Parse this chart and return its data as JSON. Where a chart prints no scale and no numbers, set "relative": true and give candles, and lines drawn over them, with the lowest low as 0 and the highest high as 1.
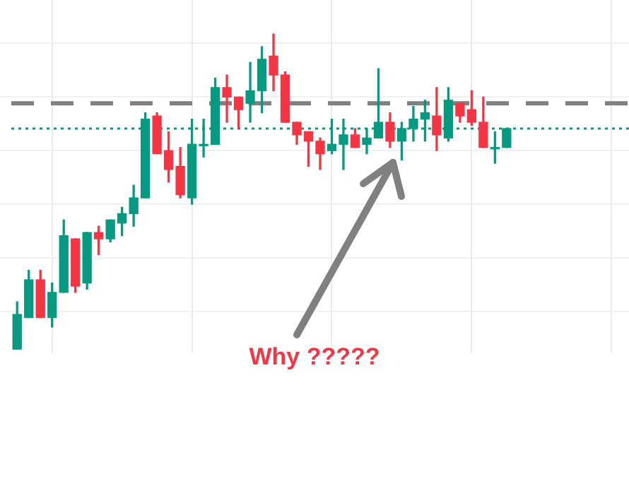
{
  "chart_data": {
    "type": "candlestick",
    "relative": true,
    "grid": true,
    "legend": false,
    "categories": [
      null,
      null,
      null,
      null,
      null,
      null,
      null,
      null,
      null,
      null,
      null,
      null,
      null,
      null,
      null,
      null,
      null,
      null,
      null,
      null,
      null,
      null,
      null,
      null,
      null,
      null,
      null,
      null,
      null,
      null,
      null,
      null,
      null,
      null,
      null,
      null,
      null,
      null,
      null,
      null,
      null,
      null,
      null,
      null,
      null,
      null,
      null,
      null,
      null,
      null,
      null,
      null,
      null
    ],
    "ohlc": [
      [
        0,
        0.15,
        0,
        0.11
      ],
      [
        0.1,
        0.25,
        0.1,
        0.22
      ],
      [
        0.22,
        0.25,
        0.1,
        0.1
      ],
      [
        0.1,
        0.21,
        0.07,
        0.18
      ],
      [
        0.18,
        0.41,
        0.18,
        0.36
      ],
      [
        0.35,
        0.35,
        0.18,
        0.2
      ],
      [
        0.21,
        0.37,
        0.19,
        0.37
      ],
      [
        0.37,
        0.39,
        0.3,
        0.35
      ],
      [
        0.35,
        0.41,
        0.34,
        0.41
      ],
      [
        0.4,
        0.45,
        0.36,
        0.43
      ],
      [
        0.43,
        0.52,
        0.39,
        0.48
      ],
      [
        0.48,
        0.75,
        0.48,
        0.73
      ],
      [
        0.74,
        0.75,
        0.62,
        0.62
      ],
      [
        0.63,
        0.69,
        0.53,
        0.57
      ],
      [
        0.58,
        0.64,
        0.48,
        0.49
      ],
      [
        0.48,
        0.73,
        0.46,
        0.65
      ],
      [
        0.65,
        0.73,
        0.61,
        0.65
      ],
      [
        0.65,
        0.86,
        0.65,
        0.83
      ],
      [
        0.83,
        0.87,
        0.72,
        0.8
      ],
      [
        0.8,
        0.8,
        0.7,
        0.76
      ],
      [
        0.78,
        0.91,
        0.72,
        0.82
      ],
      [
        0.82,
        0.96,
        0.75,
        0.92
      ],
      [
        0.93,
        1,
        0.82,
        0.87
      ],
      [
        0.87,
        0.88,
        0.72,
        0.72
      ],
      [
        0.72,
        0.72,
        0.65,
        0.68
      ],
      [
        0.69,
        0.69,
        0.58,
        0.66
      ],
      [
        0.66,
        0.67,
        0.57,
        0.62
      ],
      [
        0.63,
        0.73,
        0.62,
        0.65
      ],
      [
        0.65,
        0.73,
        0.57,
        0.68
      ],
      [
        0.68,
        0.7,
        0.64,
        0.64
      ],
      [
        0.65,
        0.7,
        0.62,
        0.67
      ],
      [
        0.67,
        0.89,
        0.67,
        0.72
      ],
      [
        0.72,
        0.75,
        0.64,
        0.66
      ],
      [
        0.66,
        0.72,
        0.6,
        0.7
      ],
      [
        0.7,
        0.77,
        0.66,
        0.73
      ],
      [
        0.73,
        0.79,
        0.66,
        0.75
      ],
      [
        0.74,
        0.83,
        0.63,
        0.68
      ],
      [
        0.67,
        0.83,
        0.66,
        0.79
      ],
      [
        0.78,
        0.78,
        0.72,
        0.74
      ],
      [
        0.76,
        0.82,
        0.71,
        0.72
      ],
      [
        0.72,
        0.8,
        0.64,
        0.64
      ],
      [
        0.64,
        0.69,
        0.59,
        0.64
      ],
      [
        0.64,
        0.7,
        0.64,
        0.7
      ],
      null,
      null,
      null,
      null,
      null,
      null,
      null,
      null,
      null,
      null
    ],
    "colors": [
      "#089981",
      "#089981",
      "#f23645",
      "#089981",
      "#089981",
      "#f23645",
      "#089981",
      "#f23645",
      "#089981",
      "#089981",
      "#089981",
      "#089981",
      "#f23645",
      "#f23645",
      "#f23645",
      "#089981",
      "#089981",
      "#089981",
      "#f23645",
      "#f23645",
      "#089981",
      "#089981",
      "#f23645",
      "#f23645",
      "#f23645",
      "#f23645",
      "#f23645",
      "#089981",
      "#089981",
      "#f23645",
      "#089981",
      "#089981",
      "#f23645",
      "#089981",
      "#089981",
      "#089981",
      "#f23645",
      "#089981",
      "#f23645",
      "#f23645",
      "#f23645",
      "#089981",
      "#089981",
      null,
      null,
      null,
      null,
      null,
      null,
      null,
      null,
      null,
      null
    ],
    "ref_lines": [
      {
        "axis": "y",
        "value": 0.78,
        "color": "#808080",
        "line_style": "dashed"
      },
      {
        "axis": "y",
        "value": 0.7,
        "color": "#089981",
        "line_style": "dotted"
      }
    ],
    "annotations": [
      "Why ?????"
    ]
  }
}
